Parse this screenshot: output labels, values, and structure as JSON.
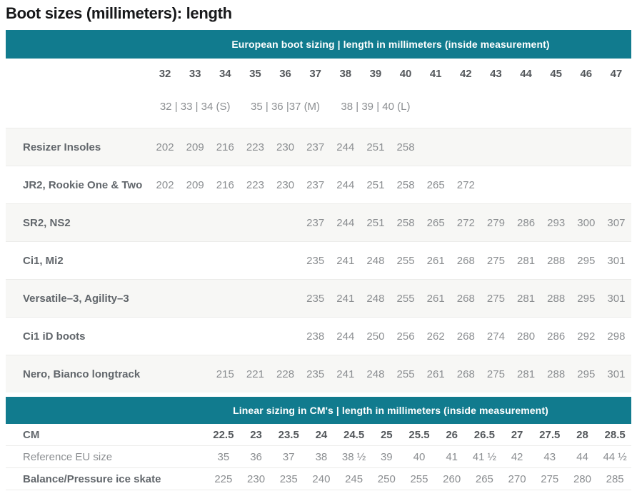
{
  "title": "Boot sizes (millimeters): length",
  "colors": {
    "teal": "#117b8e",
    "title": "#17181a",
    "label": "#61666b",
    "value": "#8b8e91",
    "bold_value": "#54585c",
    "stripe": "#f7f7f5",
    "border": "#ececea"
  },
  "european": {
    "header": "European boot sizing | length in millimeters (inside measurement)",
    "sizes": [
      "32",
      "33",
      "34",
      "35",
      "36",
      "37",
      "38",
      "39",
      "40",
      "41",
      "42",
      "43",
      "44",
      "45",
      "46",
      "47"
    ],
    "groups": [
      {
        "label": "32 | 33 | 34 (S)",
        "start": 0,
        "span": 3
      },
      {
        "label": "35 | 36 |37 (M)",
        "start": 3,
        "span": 3
      },
      {
        "label": "38 | 39 | 40 (L)",
        "start": 6,
        "span": 3
      }
    ],
    "rows": [
      {
        "label": "Resizer Insoles",
        "start": 0,
        "values": [
          202,
          209,
          216,
          223,
          230,
          237,
          244,
          251,
          258
        ]
      },
      {
        "label": "JR2, Rookie One & Two",
        "start": 0,
        "values": [
          202,
          209,
          216,
          223,
          230,
          237,
          244,
          251,
          258,
          265,
          272
        ]
      },
      {
        "label": "SR2, NS2",
        "start": 5,
        "values": [
          237,
          244,
          251,
          258,
          265,
          272,
          279,
          286,
          293,
          300,
          307
        ]
      },
      {
        "label": "Ci1, Mi2",
        "start": 5,
        "values": [
          235,
          241,
          248,
          255,
          261,
          268,
          275,
          281,
          288,
          295,
          301
        ]
      },
      {
        "label": "Versatile–3, Agility–3",
        "start": 5,
        "values": [
          235,
          241,
          248,
          255,
          261,
          268,
          275,
          281,
          288,
          295,
          301
        ]
      },
      {
        "label": "Ci1 iD boots",
        "start": 5,
        "values": [
          238,
          244,
          250,
          256,
          262,
          268,
          274,
          280,
          286,
          292,
          298
        ]
      },
      {
        "label": "Nero, Bianco longtrack",
        "start": 2,
        "values": [
          215,
          221,
          228,
          235,
          241,
          248,
          255,
          261,
          268,
          275,
          281,
          288,
          295,
          301
        ]
      }
    ]
  },
  "linear": {
    "header": "Linear sizing in CM's | length in millimeters (inside measurement)",
    "rows": [
      {
        "label": "CM",
        "label_bold": true,
        "values_bold": true,
        "values": [
          "22.5",
          "23",
          "23.5",
          "24",
          "24.5",
          "25",
          "25.5",
          "26",
          "26.5",
          "27",
          "27.5",
          "28",
          "28.5"
        ]
      },
      {
        "label": "Reference EU size",
        "label_bold": false,
        "values_bold": false,
        "values": [
          "35",
          "36",
          "37",
          "38",
          "38 ½",
          "39",
          "40",
          "41",
          "41 ½",
          "42",
          "43",
          "44",
          "44 ½"
        ]
      },
      {
        "label": "Balance/Pressure ice skate",
        "label_bold": true,
        "values_bold": false,
        "values": [
          "225",
          "230",
          "235",
          "240",
          "245",
          "250",
          "255",
          "260",
          "265",
          "270",
          "275",
          "280",
          "285"
        ]
      }
    ]
  }
}
